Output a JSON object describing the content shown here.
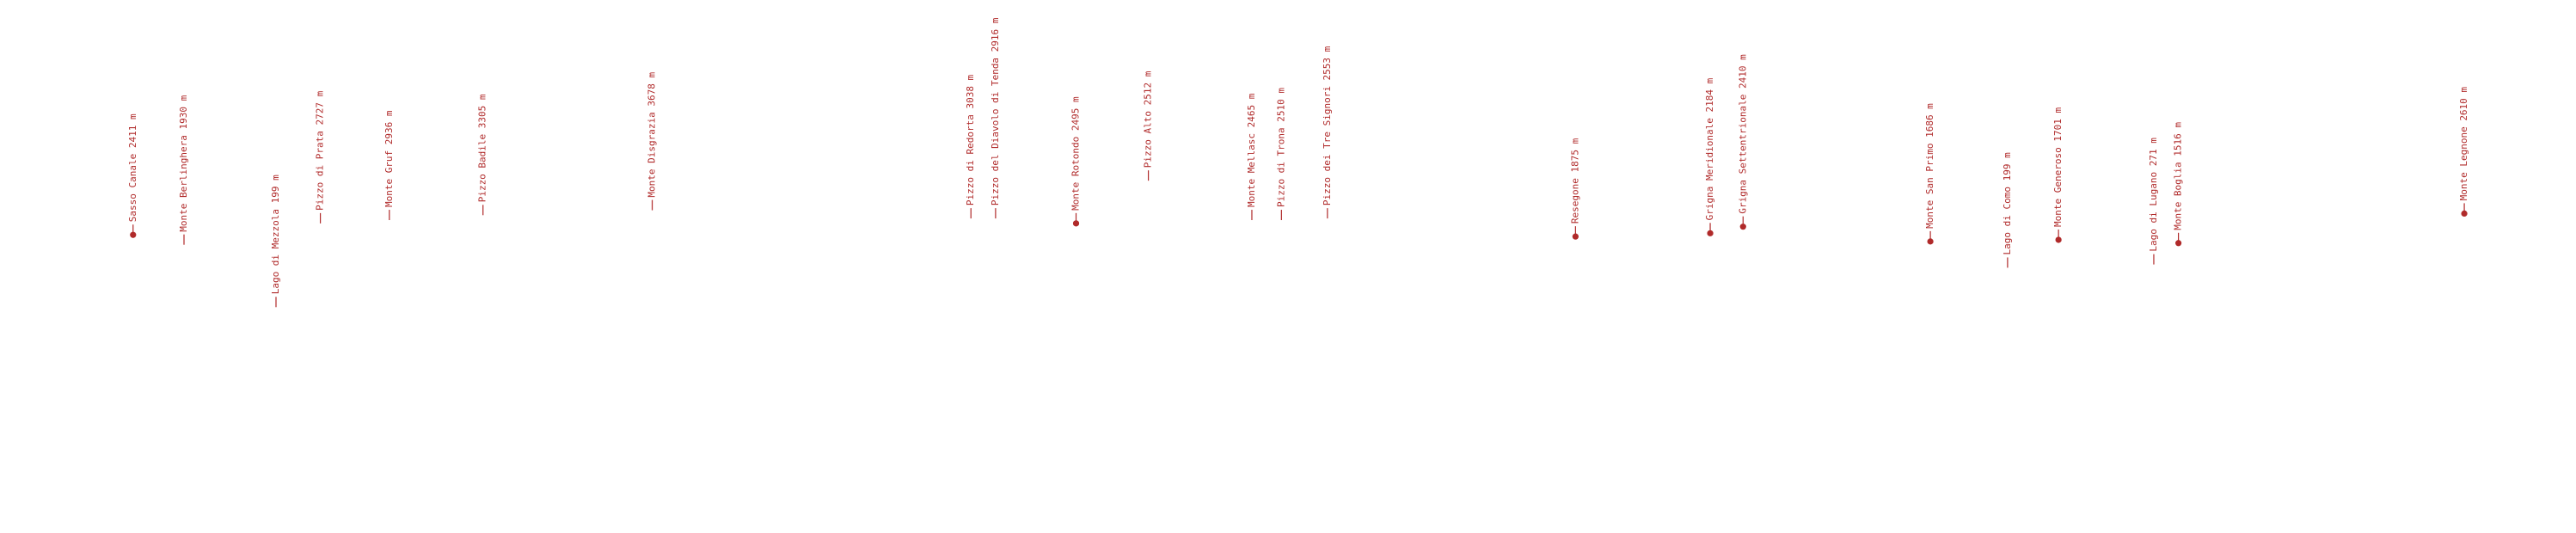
{
  "labels": [
    "Sasso Canale 2411 m",
    "Monte Berlinghera 1930 m",
    "Lago di Mezzola 199 m",
    "Pizzo di Prata 2727 m",
    "Monte Gruf 2936 m",
    "Pizzo Badile 3305 m",
    "Monte Disgrazia 3678 m",
    "Pizzo di Redorta 3038 m",
    "Pizzo del Diavolo di Tenda 2916 m",
    "Monte Rotondo 2495 m",
    "Pizzo Alto 2512 m",
    "Monte Mellasc 2465 m",
    "Pizzo di Trona 2510 m",
    "Pizzo dei Tre Signori 2553 m",
    "Resegone 1875 m",
    "Grigna Meridionale 2184 m",
    "Grigna Settentrionale 2410 m",
    "Monte San Primo 1686 m",
    "Lago di Como 199 m",
    "Monte Generoso 1701 m",
    "Lago di Lugano 271 m",
    "Monte Boglia 1516 m",
    "Monte Legnone 2610 m"
  ]
}
